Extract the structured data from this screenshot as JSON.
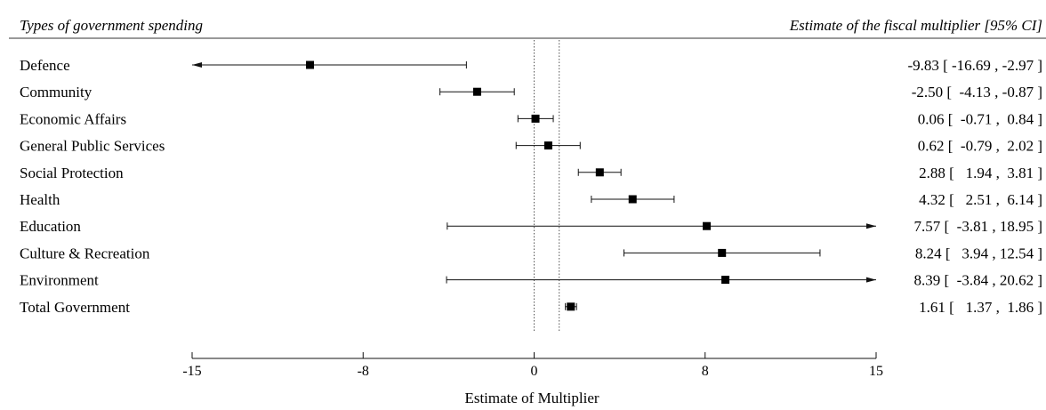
{
  "chart_data": {
    "type": "forest",
    "left_header": "Types of government spending",
    "right_header": "Estimate of the fiscal multiplier [95% CI]",
    "xlabel": "Estimate of Multiplier",
    "xlim": [
      -15,
      15
    ],
    "x_ticks": [
      {
        "value": -15,
        "label": "-15"
      },
      {
        "value": -7.5,
        "label": "-8"
      },
      {
        "value": 0,
        "label": "0"
      },
      {
        "value": 7.5,
        "label": "8"
      },
      {
        "value": 15,
        "label": "15"
      }
    ],
    "reference_lines": [
      0,
      1.1
    ],
    "rows": [
      {
        "label": "Defence",
        "estimate": -9.83,
        "lower": -16.69,
        "upper": -2.97,
        "text": "-9.83 [ -16.69 , -2.97 ]"
      },
      {
        "label": "Community",
        "estimate": -2.5,
        "lower": -4.13,
        "upper": -0.87,
        "text": "-2.50 [  -4.13 , -0.87 ]"
      },
      {
        "label": "Economic Affairs",
        "estimate": 0.06,
        "lower": -0.71,
        "upper": 0.84,
        "text": "0.06 [  -0.71 ,  0.84 ]"
      },
      {
        "label": "General Public Services",
        "estimate": 0.62,
        "lower": -0.79,
        "upper": 2.02,
        "text": "0.62 [  -0.79 ,  2.02 ]"
      },
      {
        "label": "Social Protection",
        "estimate": 2.88,
        "lower": 1.94,
        "upper": 3.81,
        "text": "2.88 [   1.94 ,  3.81 ]"
      },
      {
        "label": "Health",
        "estimate": 4.32,
        "lower": 2.51,
        "upper": 6.14,
        "text": "4.32 [   2.51 ,  6.14 ]"
      },
      {
        "label": "Education",
        "estimate": 7.57,
        "lower": -3.81,
        "upper": 18.95,
        "text": "7.57 [  -3.81 , 18.95 ]"
      },
      {
        "label": "Culture & Recreation",
        "estimate": 8.24,
        "lower": 3.94,
        "upper": 12.54,
        "text": "8.24 [   3.94 , 12.54 ]"
      },
      {
        "label": "Environment",
        "estimate": 8.39,
        "lower": -3.84,
        "upper": 20.62,
        "text": "8.39 [  -3.84 , 20.62 ]"
      },
      {
        "label": "Total Government",
        "estimate": 1.61,
        "lower": 1.37,
        "upper": 1.86,
        "text": "1.61 [   1.37 ,  1.86 ]"
      }
    ]
  }
}
